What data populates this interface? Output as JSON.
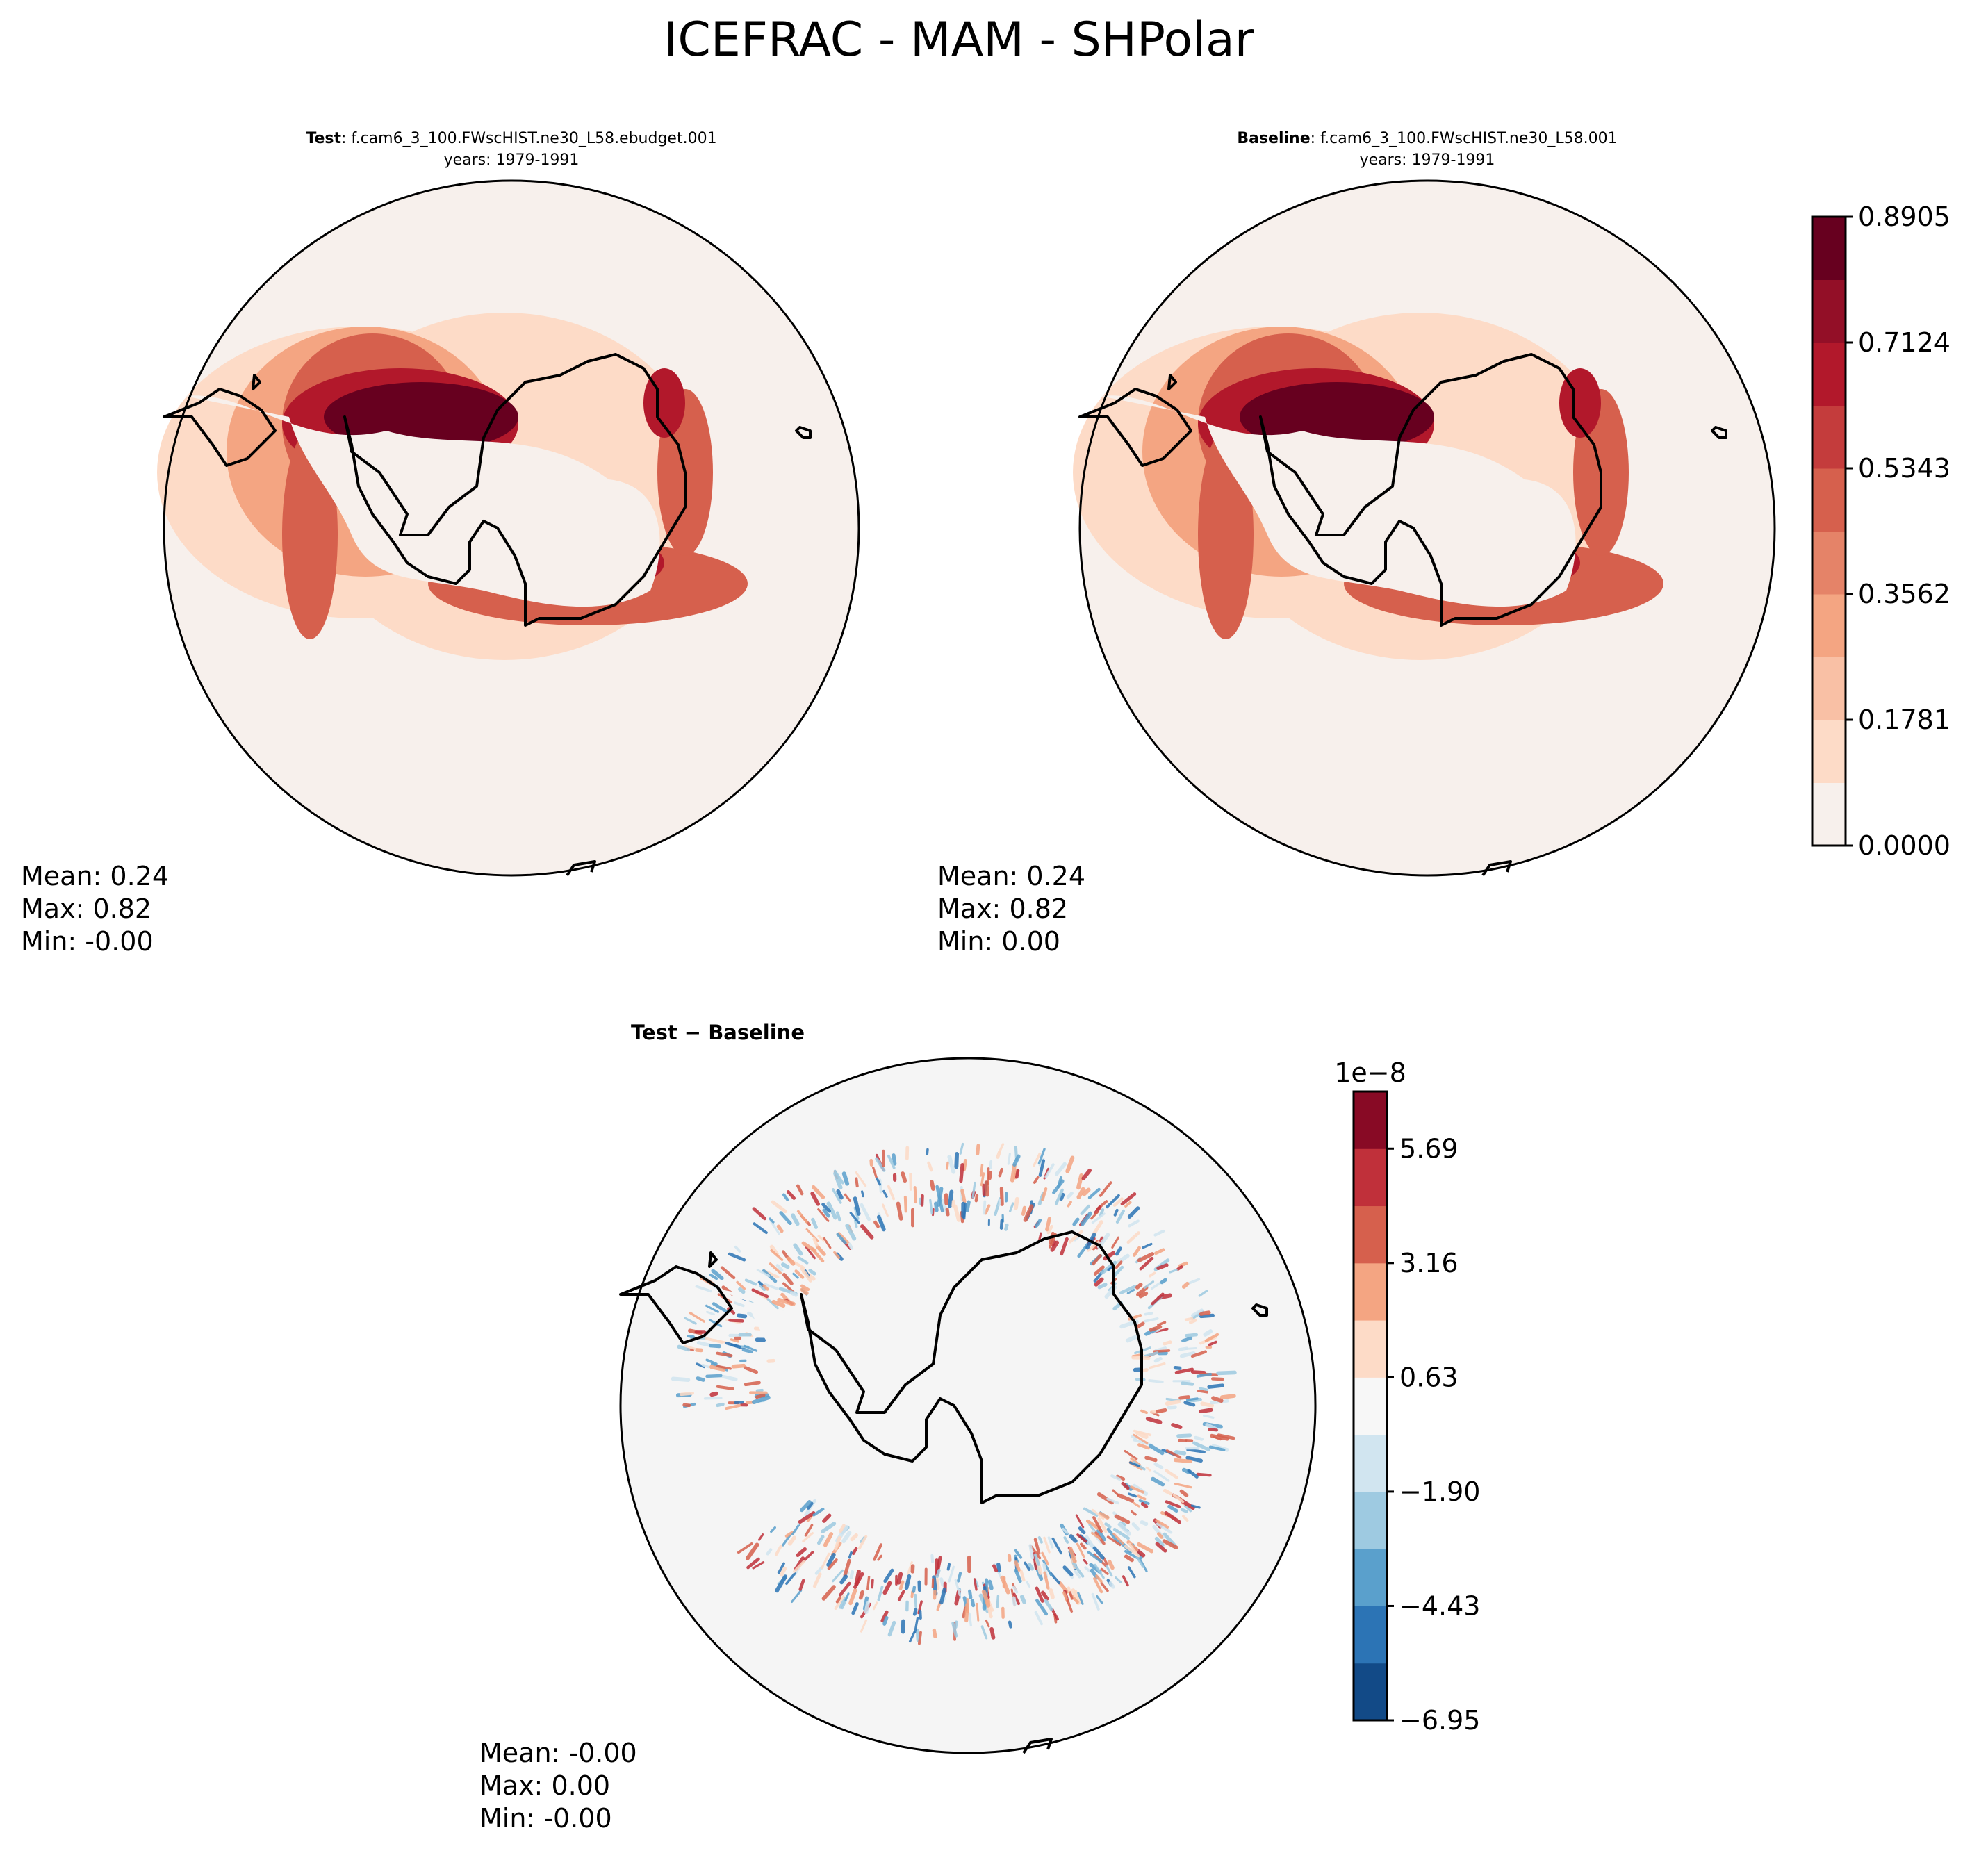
{
  "figure": {
    "title": "ICEFRAC - MAM - SHPolar"
  },
  "panels": [
    {
      "id": "test",
      "label_bold": "Test",
      "label_rest": ": f.cam6_3_100.FWscHIST.ne30_L58.ebudget.001",
      "years": "years: 1979-1991",
      "stats": {
        "mean": "Mean:  0.24",
        "max": "Max:  0.82",
        "min": "Min: -0.00"
      }
    },
    {
      "id": "baseline",
      "label_bold": "Baseline",
      "label_rest": ": f.cam6_3_100.FWscHIST.ne30_L58.001",
      "years": "years: 1979-1991",
      "stats": {
        "mean": "Mean:  0.24",
        "max": "Max:  0.82",
        "min": "Min:  0.00"
      }
    },
    {
      "id": "diff",
      "label": "Test − Baseline",
      "stats": {
        "mean": "Mean: -0.00",
        "max": "Max:  0.00",
        "min": "Min: -0.00"
      }
    }
  ],
  "colorbars": {
    "abs": {
      "tick_labels": [
        "0.0000",
        "0.1781",
        "0.3562",
        "0.5343",
        "0.7124",
        "0.8905"
      ],
      "colors": [
        "#f7f0ec",
        "#fddbc7",
        "#f9c0a5",
        "#f4a582",
        "#e58368",
        "#d6604d",
        "#c43c3c",
        "#b2182b",
        "#930f27",
        "#67001f"
      ]
    },
    "diff": {
      "offset_label": "1e−8",
      "tick_labels": [
        "−6.95",
        "−4.43",
        "−1.90",
        "0.63",
        "3.16",
        "5.69"
      ],
      "colors": [
        "#124a87",
        "#2c74b5",
        "#5aa0cc",
        "#9ecae1",
        "#d1e5f0",
        "#f7f7f7",
        "#fddbc7",
        "#f4a582",
        "#d6604d",
        "#c0303a",
        "#880a25"
      ]
    }
  },
  "chart_data": {
    "type": "map",
    "variable": "ICEFRAC",
    "season": "MAM",
    "region": "SHPolar",
    "abs_levels": [
      0.0,
      0.1781,
      0.3562,
      0.5343,
      0.7124,
      0.8905
    ],
    "diff_levels_1e-8": [
      -6.95,
      -4.43,
      -1.9,
      0.63,
      3.16,
      5.69
    ],
    "stats": {
      "test": {
        "mean": 0.24,
        "max": 0.82,
        "min": -0.0
      },
      "baseline": {
        "mean": 0.24,
        "max": 0.82,
        "min": 0.0
      },
      "diff": {
        "mean": -0.0,
        "max": 0.0,
        "min": -0.0
      }
    }
  }
}
